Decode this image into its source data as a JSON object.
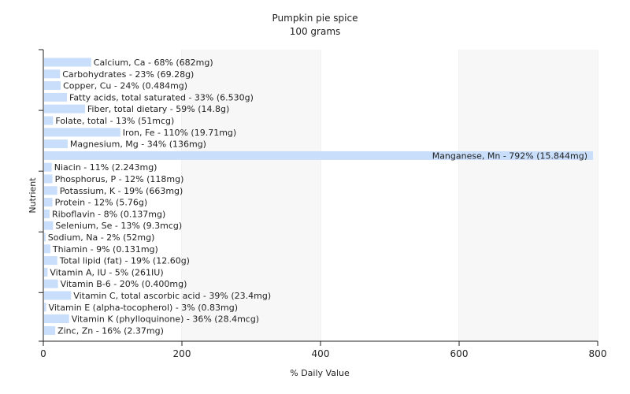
{
  "chart_data": {
    "type": "bar",
    "orientation": "horizontal",
    "title": "Pumpkin pie spice",
    "subtitle": "100 grams",
    "xlabel": "% Daily Value",
    "ylabel": "Nutrient",
    "xlim": [
      0,
      800
    ],
    "xticks": [
      "0",
      "200",
      "400",
      "600",
      "800"
    ],
    "grid": true,
    "bar_color": "#c9defa",
    "categories": [
      "Calcium, Ca - 68% (682mg)",
      "Carbohydrates - 23% (69.28g)",
      "Copper, Cu - 24% (0.484mg)",
      "Fatty acids, total saturated - 33% (6.530g)",
      "Fiber, total dietary - 59% (14.8g)",
      "Folate, total - 13% (51mcg)",
      "Iron, Fe - 110% (19.71mg)",
      "Magnesium, Mg - 34% (136mg)",
      "Manganese, Mn - 792% (15.844mg)",
      "Niacin - 11% (2.243mg)",
      "Phosphorus, P - 12% (118mg)",
      "Potassium, K - 19% (663mg)",
      "Protein - 12% (5.76g)",
      "Riboflavin - 8% (0.137mg)",
      "Selenium, Se - 13% (9.3mcg)",
      "Sodium, Na - 2% (52mg)",
      "Thiamin - 9% (0.131mg)",
      "Total lipid (fat) - 19% (12.60g)",
      "Vitamin A, IU - 5% (261IU)",
      "Vitamin B-6 - 20% (0.400mg)",
      "Vitamin C, total ascorbic acid - 39% (23.4mg)",
      "Vitamin E (alpha-tocopherol) - 3% (0.83mg)",
      "Vitamin K (phylloquinone) - 36% (28.4mcg)",
      "Zinc, Zn - 16% (2.37mg)"
    ],
    "values": [
      68,
      23,
      24,
      33,
      59,
      13,
      110,
      34,
      792,
      11,
      12,
      19,
      12,
      8,
      13,
      2,
      9,
      19,
      5,
      20,
      39,
      3,
      36,
      16
    ]
  }
}
